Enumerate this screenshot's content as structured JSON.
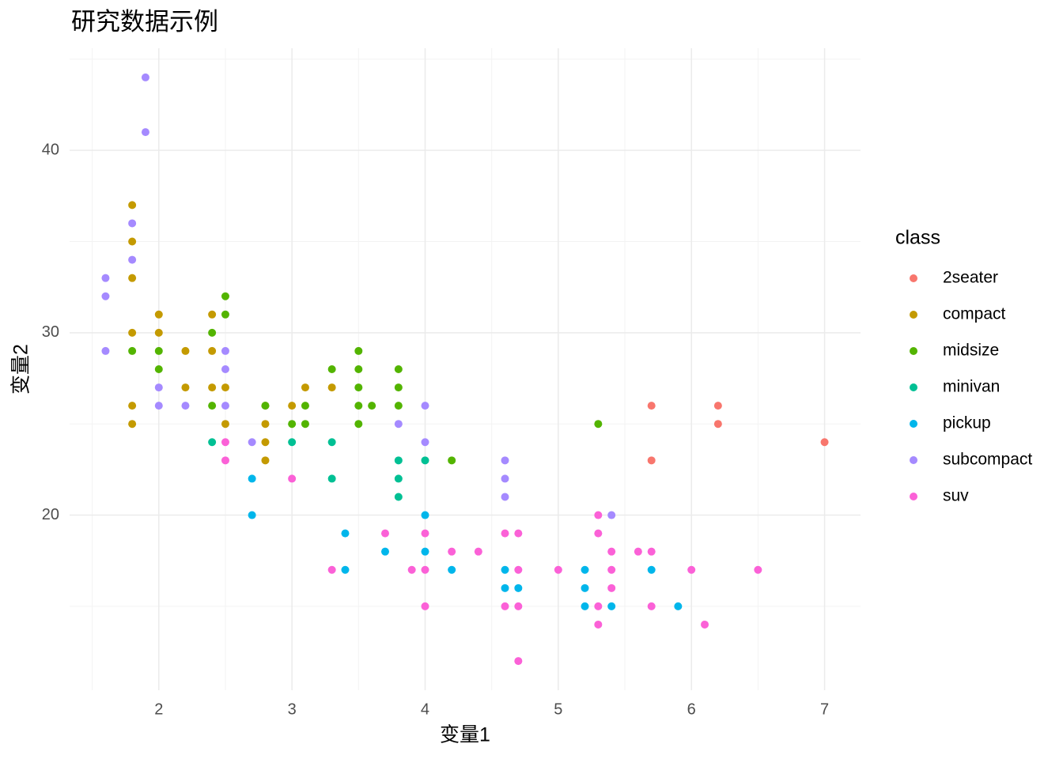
{
  "chart_data": {
    "type": "scatter",
    "title": "研究数据示例",
    "x_label": "变量1",
    "y_label": "变量2",
    "legend_title": "class",
    "legend": "right",
    "grid": true,
    "xlim": [
      1.33,
      7.27
    ],
    "ylim": [
      10.4,
      45.6
    ],
    "xticks": [
      2,
      3,
      4,
      5,
      6,
      7
    ],
    "yticks": [
      20,
      30,
      40
    ],
    "x_minor_ticks": [
      1.5,
      2.5,
      3.5,
      4.5,
      5.5,
      6.5
    ],
    "y_minor_ticks": [
      15,
      25,
      35,
      45
    ],
    "series": [
      {
        "name": "2seater",
        "color": "#F8766D",
        "x": [
          5.7,
          6.2,
          6.2,
          5.7,
          7
        ],
        "values": [
          26,
          26,
          25,
          23,
          24
        ]
      },
      {
        "name": "compact",
        "color": "#C49A00",
        "x": [
          1.8,
          1.8,
          1.8,
          1.8,
          1.8,
          1.8,
          2,
          2,
          2.2,
          2.2,
          2.4,
          2.4,
          2.4,
          2.5,
          2.5,
          2.8,
          2.8,
          2.8,
          2.8,
          3,
          3.1,
          3.3
        ],
        "values": [
          37,
          35,
          33,
          30,
          26,
          25,
          31,
          30,
          29,
          27,
          31,
          29,
          27,
          27,
          25,
          26,
          25,
          24,
          23,
          26,
          27,
          27
        ]
      },
      {
        "name": "midsize",
        "color": "#53B400",
        "x": [
          1.8,
          2,
          2,
          2.4,
          2.4,
          2.5,
          2.5,
          2.8,
          3,
          3.1,
          3.1,
          3.3,
          3.5,
          3.5,
          3.5,
          3.5,
          3.5,
          3.6,
          3.8,
          3.8,
          3.8,
          4.2,
          5.3
        ],
        "values": [
          29,
          29,
          28,
          30,
          26,
          32,
          31,
          26,
          25,
          26,
          25,
          28,
          29,
          28,
          27,
          26,
          25,
          26,
          28,
          27,
          26,
          23,
          25
        ]
      },
      {
        "name": "minivan",
        "color": "#00C094",
        "x": [
          2.4,
          3,
          3.3,
          3.3,
          3.8,
          3.8,
          3.8,
          4
        ],
        "values": [
          24,
          24,
          24,
          22,
          23,
          22,
          21,
          23
        ]
      },
      {
        "name": "pickup",
        "color": "#00B6EB",
        "x": [
          2.7,
          2.7,
          3.4,
          3.4,
          3.7,
          4,
          4,
          4.2,
          4.6,
          4.6,
          4.7,
          5.2,
          5.2,
          5.2,
          5.4,
          5.7,
          5.9
        ],
        "values": [
          22,
          20,
          19,
          17,
          18,
          20,
          18,
          17,
          17,
          16,
          16,
          17,
          16,
          15,
          15,
          17,
          15
        ]
      },
      {
        "name": "subcompact",
        "color": "#A58AFF",
        "x": [
          1.6,
          1.6,
          1.6,
          1.8,
          1.8,
          1.9,
          1.9,
          2,
          2,
          2.2,
          2.5,
          2.5,
          2.5,
          2.7,
          3.8,
          4,
          4,
          4.6,
          4.6,
          4.6,
          5.4
        ],
        "values": [
          33,
          32,
          29,
          36,
          34,
          44,
          41,
          27,
          26,
          26,
          29,
          28,
          26,
          24,
          25,
          26,
          24,
          23,
          22,
          21,
          20
        ]
      },
      {
        "name": "suv",
        "color": "#FB61D7",
        "x": [
          2.5,
          2.5,
          3,
          3.3,
          3.7,
          3.9,
          4,
          4,
          4,
          4.2,
          4.4,
          4.6,
          4.6,
          4.7,
          4.7,
          4.7,
          4.7,
          5,
          5.3,
          5.3,
          5.3,
          5.3,
          5.4,
          5.4,
          5.4,
          5.6,
          5.7,
          5.7,
          6,
          6.1,
          6.5
        ],
        "values": [
          24,
          23,
          22,
          17,
          19,
          17,
          19,
          17,
          15,
          18,
          18,
          19,
          15,
          19,
          17,
          15,
          12,
          17,
          20,
          19,
          15,
          14,
          18,
          17,
          16,
          18,
          18,
          15,
          17,
          14,
          17
        ]
      }
    ]
  }
}
